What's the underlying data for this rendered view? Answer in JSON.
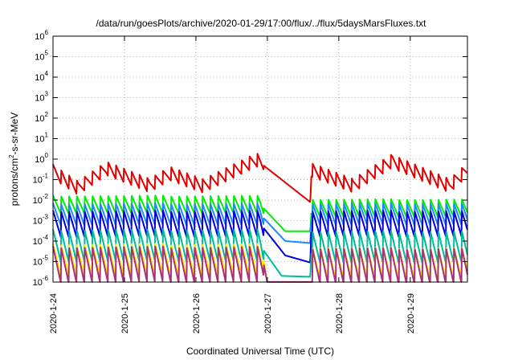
{
  "chart_data": {
    "type": "line",
    "title": "/data/run/goesPlots/archive/2020-01-29/17:00/flux/../flux/5daysMarsFluxes.txt",
    "xlabel": "Coordinated Universal Time (UTC)",
    "ylabel": "protons/cm2-s-sr-MeV",
    "ylabel_parts": {
      "pre": "protons/cm",
      "sup": "2",
      "post": "-s-sr-MeV"
    },
    "yscale": "log",
    "ylim": [
      1e-06,
      1000000.0
    ],
    "xlim_days": [
      0,
      5.8
    ],
    "grid": true,
    "y_ticks": [
      {
        "base": "10",
        "exp": "-6",
        "value": 1e-06
      },
      {
        "base": "10",
        "exp": "-5",
        "value": 1e-05
      },
      {
        "base": "10",
        "exp": "-4",
        "value": 0.0001
      },
      {
        "base": "10",
        "exp": "-3",
        "value": 0.001
      },
      {
        "base": "10",
        "exp": "-2",
        "value": 0.01
      },
      {
        "base": "10",
        "exp": "-1",
        "value": 0.1
      },
      {
        "base": "10",
        "exp": "0",
        "value": 1
      },
      {
        "base": "10",
        "exp": "1",
        "value": 10
      },
      {
        "base": "10",
        "exp": "2",
        "value": 100
      },
      {
        "base": "10",
        "exp": "3",
        "value": 1000
      },
      {
        "base": "10",
        "exp": "4",
        "value": 10000
      },
      {
        "base": "10",
        "exp": "5",
        "value": 100000
      },
      {
        "base": "10",
        "exp": "6",
        "value": 1000000
      }
    ],
    "x_ticks": [
      "2020-1-24",
      "2020-1-25",
      "2020-1-26",
      "2020-1-27",
      "2020-1-28",
      "2020-1-29"
    ],
    "series": [
      {
        "color": "#e00000",
        "baseline": 0.055,
        "amp": 0.7,
        "period": 0.11,
        "envelope": [
          [
            0,
            0.25
          ],
          [
            0.35,
            0.04
          ],
          [
            0.75,
            0.35
          ],
          [
            1.35,
            0.05
          ],
          [
            1.65,
            0.2
          ],
          [
            2.1,
            0.05
          ],
          [
            2.85,
            0.9
          ],
          [
            3.6,
            0.008
          ],
          [
            3.62,
            0.3
          ],
          [
            4.2,
            0.05
          ],
          [
            4.75,
            0.8
          ],
          [
            5.55,
            0.05
          ],
          [
            5.8,
            0.3
          ]
        ]
      },
      {
        "color": "#00ee00",
        "baseline": 0.005,
        "amp": 0.9,
        "period": 0.11,
        "envelope": [
          [
            0,
            0.006
          ],
          [
            2.9,
            0.006
          ],
          [
            3.25,
            0.0003
          ],
          [
            3.6,
            0.0003
          ],
          [
            3.62,
            0.004
          ],
          [
            5.8,
            0.004
          ]
        ]
      },
      {
        "color": "#1e88ff",
        "baseline": 0.0025,
        "amp": 1.1,
        "period": 0.11,
        "envelope": [
          [
            0,
            0.002
          ],
          [
            2.9,
            0.002
          ],
          [
            3.25,
            0.0001
          ],
          [
            3.6,
            8e-05
          ],
          [
            3.62,
            0.002
          ],
          [
            5.8,
            0.002
          ]
        ]
      },
      {
        "color": "#0000dd",
        "baseline": 0.0009,
        "amp": 1.3,
        "period": 0.11,
        "envelope": [
          [
            0,
            0.0007
          ],
          [
            2.9,
            0.0007
          ],
          [
            3.25,
            2e-05
          ],
          [
            3.6,
            9e-06
          ],
          [
            3.62,
            0.0007
          ],
          [
            5.8,
            0.0007
          ]
        ]
      },
      {
        "color": "#00bb99",
        "baseline": 8e-05,
        "amp": 1.6,
        "period": 0.11,
        "envelope": [
          [
            0,
            6e-05
          ],
          [
            2.9,
            6e-05
          ],
          [
            3.2,
            2e-06
          ],
          [
            3.6,
            1.8e-06
          ],
          [
            3.62,
            5e-05
          ],
          [
            5.8,
            5e-05
          ]
        ]
      },
      {
        "color": "#ffee00",
        "baseline": 1e-05,
        "amp": 1.6,
        "period": 0.11,
        "envelope": [
          [
            0,
            1.2e-05
          ],
          [
            2.95,
            1.2e-05
          ],
          [
            3.0,
            9e-07
          ],
          [
            3.62,
            9e-07
          ],
          [
            3.63,
            8e-06
          ],
          [
            5.8,
            8e-06
          ]
        ]
      },
      {
        "color": "#aa3377",
        "baseline": 6e-06,
        "amp": 1.8,
        "period": 0.11,
        "envelope": [
          [
            0,
            7e-06
          ],
          [
            2.95,
            7e-06
          ],
          [
            3.0,
            9e-07
          ],
          [
            3.62,
            9e-07
          ],
          [
            3.63,
            6e-06
          ],
          [
            5.8,
            6e-06
          ]
        ]
      }
    ]
  }
}
